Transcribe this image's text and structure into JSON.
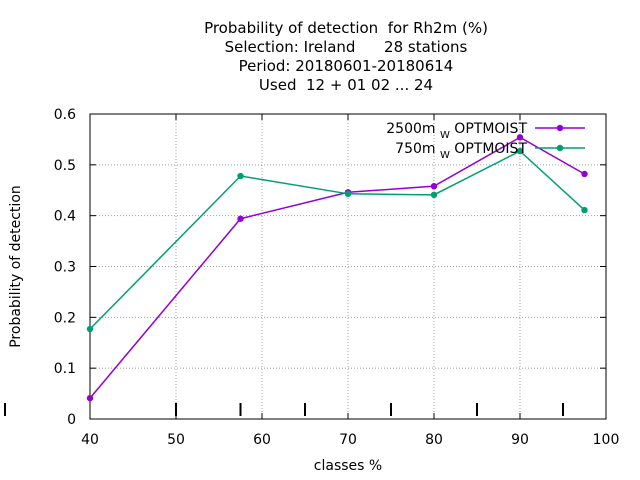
{
  "chart_data": {
    "type": "line",
    "title_lines": [
      "Probability of detection  for Rh2m (%)",
      "Selection: Ireland      28 stations",
      "Period: 20180601-20180614",
      "Used  12 + 01 02 ... 24"
    ],
    "xlabel": "classes %",
    "ylabel": "Probability of detection",
    "xlim": [
      40,
      100
    ],
    "ylim": [
      0,
      0.6
    ],
    "xticks": [
      "40",
      "50",
      "60",
      "70",
      "80",
      "90",
      "100"
    ],
    "yticks": [
      "0",
      "0.1",
      "0.2",
      "0.3",
      "0.4",
      "0.5",
      "0.6"
    ],
    "grid": true,
    "legend_position": "top-right",
    "class_markers": [
      40,
      50,
      57.5,
      65,
      75,
      85,
      95
    ],
    "series": [
      {
        "name_main": "2500m",
        "name_sub": "W",
        "name_tail": "OPTMOIST",
        "color": "#9400D3",
        "x": [
          40,
          57.5,
          70,
          80,
          90,
          97.5
        ],
        "y": [
          0.041,
          0.394,
          0.446,
          0.458,
          0.554,
          0.482
        ]
      },
      {
        "name_main": "750m",
        "name_sub": "W",
        "name_tail": "OPTMOIST",
        "color": "#009E73",
        "x": [
          40,
          57.5,
          70,
          80,
          90,
          97.5
        ],
        "y": [
          0.177,
          0.478,
          0.443,
          0.441,
          0.527,
          0.411
        ]
      }
    ]
  }
}
